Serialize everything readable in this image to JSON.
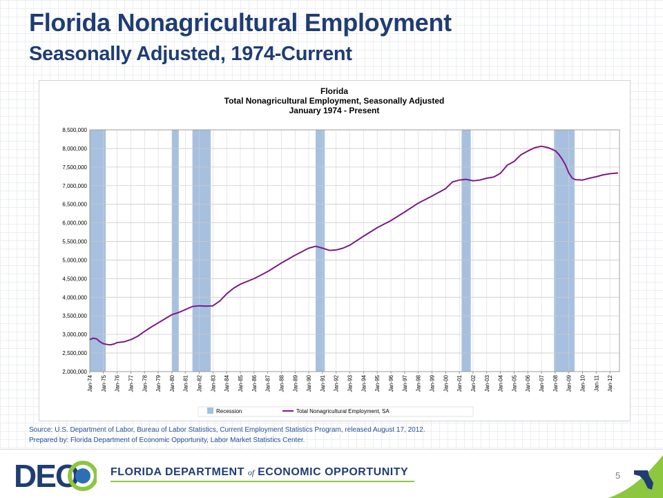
{
  "slide": {
    "title": "Florida Nonagricultural Employment",
    "subtitle": "Seasonally Adjusted, 1974-Current",
    "source": "Source:  U.S. Department of Labor, Bureau of Labor Statistics, Current Employment Statistics Program, released  August 17, 2012.",
    "prepared_by": "Prepared by:  Florida Department of Economic Opportunity, Labor Market Statistics Center.",
    "page_number": "5"
  },
  "footer": {
    "logo_text": "DEO",
    "department_prefix": "FLORIDA DEPARTMENT",
    "department_of": "of",
    "department_suffix": "ECONOMIC OPPORTUNITY"
  },
  "colors": {
    "title": "#1f3d73",
    "series": "#7b1a86",
    "recession": "#a7c0df",
    "accent_green": "#8dc63f",
    "source_text": "#1f4e96"
  },
  "chart_data": {
    "type": "line",
    "title_lines": [
      "Florida",
      "Total Nonagricultural Employment, Seasonally Adjusted",
      "January 1974 - Present"
    ],
    "xlabel": "",
    "ylabel": "",
    "x_range": [
      1974,
      2012.7
    ],
    "ylim": [
      2000000,
      8500000
    ],
    "y_ticks": [
      2000000,
      2500000,
      3000000,
      3500000,
      4000000,
      4500000,
      5000000,
      5500000,
      6000000,
      6500000,
      7000000,
      7500000,
      8000000,
      8500000
    ],
    "y_tick_labels": [
      "2,000,000",
      "2,500,000",
      "3,000,000",
      "3,500,000",
      "4,000,000",
      "4,500,000",
      "5,000,000",
      "5,500,000",
      "6,000,000",
      "6,500,000",
      "7,000,000",
      "7,500,000",
      "8,000,000",
      "8,500,000"
    ],
    "x_tick_labels": [
      "Jan-74",
      "Jan-75",
      "Jan-76",
      "Jan-77",
      "Jan-78",
      "Jan-79",
      "Jan-80",
      "Jan-81",
      "Jan-82",
      "Jan-83",
      "Jan-84",
      "Jan-85",
      "Jan-86",
      "Jan-87",
      "Jan-88",
      "Jan-89",
      "Jan-90",
      "Jan-91",
      "Jan-92",
      "Jan-93",
      "Jan-94",
      "Jan-95",
      "Jan-96",
      "Jan-97",
      "Jan-98",
      "Jan-99",
      "Jan-00",
      "Jan-01",
      "Jan-02",
      "Jan-03",
      "Jan-04",
      "Jan-05",
      "Jan-06",
      "Jan-07",
      "Jan-08",
      "Jan-09",
      "Jan-10",
      "Jan-11",
      "Jan-12"
    ],
    "grid": true,
    "legend_position": "bottom",
    "recessions": [
      {
        "start": "Nov-73",
        "end": "Mar-75"
      },
      {
        "start": "Jan-80",
        "end": "Jul-80"
      },
      {
        "start": "Jul-81",
        "end": "Nov-82"
      },
      {
        "start": "Jul-90",
        "end": "Mar-91"
      },
      {
        "start": "Mar-01",
        "end": "Nov-01"
      },
      {
        "start": "Dec-07",
        "end": "Jun-09"
      }
    ],
    "series": [
      {
        "name": "Total Nonagricultural Employment, SA",
        "x": [
          1974,
          1974.25,
          1974.5,
          1974.75,
          1975,
          1975.25,
          1975.5,
          1975.75,
          1976,
          1976.5,
          1977,
          1977.5,
          1978,
          1978.5,
          1979,
          1979.5,
          1980,
          1980.5,
          1981,
          1981.5,
          1982,
          1982.5,
          1983,
          1983.5,
          1984,
          1984.5,
          1985,
          1986,
          1987,
          1988,
          1989,
          1990,
          1990.5,
          1991,
          1991.5,
          1992,
          1992.5,
          1993,
          1994,
          1995,
          1996,
          1997,
          1998,
          1999,
          2000,
          2000.5,
          2001,
          2001.5,
          2002,
          2002.5,
          2003,
          2003.5,
          2004,
          2004.5,
          2005,
          2005.5,
          2006,
          2006.5,
          2007,
          2007.5,
          2008,
          2008.25,
          2008.5,
          2008.75,
          2009,
          2009.25,
          2009.5,
          2010,
          2010.5,
          2011,
          2011.5,
          2012,
          2012.6
        ],
        "y": [
          2860000,
          2900000,
          2880000,
          2800000,
          2750000,
          2730000,
          2720000,
          2740000,
          2780000,
          2800000,
          2860000,
          2950000,
          3080000,
          3200000,
          3310000,
          3420000,
          3530000,
          3590000,
          3670000,
          3750000,
          3770000,
          3760000,
          3770000,
          3900000,
          4090000,
          4240000,
          4350000,
          4500000,
          4690000,
          4920000,
          5130000,
          5320000,
          5370000,
          5320000,
          5260000,
          5270000,
          5320000,
          5400000,
          5640000,
          5870000,
          6060000,
          6290000,
          6530000,
          6720000,
          6920000,
          7100000,
          7150000,
          7170000,
          7130000,
          7150000,
          7200000,
          7230000,
          7330000,
          7550000,
          7650000,
          7830000,
          7930000,
          8020000,
          8060000,
          8020000,
          7940000,
          7850000,
          7720000,
          7560000,
          7340000,
          7200000,
          7160000,
          7150000,
          7200000,
          7240000,
          7290000,
          7320000,
          7340000
        ]
      }
    ],
    "legend_entries": [
      "Recession",
      "Total Nonagricultural Employment, SA"
    ]
  }
}
